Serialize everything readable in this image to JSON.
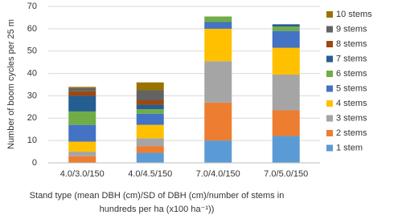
{
  "chart_data": {
    "type": "stacked_bar",
    "y_label": "Number of boom cycles per 25 m",
    "x_label": [
      "Stand type (mean DBH (cm)/SD of DBH (cm)/number of stems in",
      "hundreds per ha (x100 ha⁻¹))"
    ],
    "categories": [
      "4.0/3.0/150",
      "4.0/4.5/150",
      "7.0/4.0/150",
      "7.0/5.0/150"
    ],
    "series": [
      {
        "name": "1 stem",
        "color": "#5b9bd5",
        "values": [
          0,
          4.5,
          10,
          12
        ]
      },
      {
        "name": "2 stems",
        "color": "#ed7d31",
        "values": [
          3,
          3,
          17,
          11.5
        ]
      },
      {
        "name": "3 stems",
        "color": "#a5a5a5",
        "values": [
          2,
          3.5,
          18.5,
          16
        ]
      },
      {
        "name": "4 stems",
        "color": "#ffc000",
        "values": [
          4.5,
          6,
          14.5,
          12
        ]
      },
      {
        "name": "5 stems",
        "color": "#4472c4",
        "values": [
          7.5,
          5,
          3,
          7.5
        ]
      },
      {
        "name": "6 stems",
        "color": "#70ad47",
        "values": [
          6,
          2,
          2.5,
          2
        ]
      },
      {
        "name": "7 stems",
        "color": "#255e91",
        "values": [
          7,
          2,
          0,
          1
        ]
      },
      {
        "name": "8 stems",
        "color": "#9e480e",
        "values": [
          2,
          2,
          0,
          0
        ]
      },
      {
        "name": "9 stems",
        "color": "#636363",
        "values": [
          1.5,
          4.5,
          0,
          0
        ]
      },
      {
        "name": "10 stems",
        "color": "#997300",
        "values": [
          0.5,
          3.5,
          0,
          0
        ]
      }
    ],
    "ylim": [
      0,
      70
    ],
    "yticks": [
      0,
      10,
      20,
      30,
      40,
      50,
      60,
      70
    ],
    "grid": true,
    "legend": "right"
  }
}
